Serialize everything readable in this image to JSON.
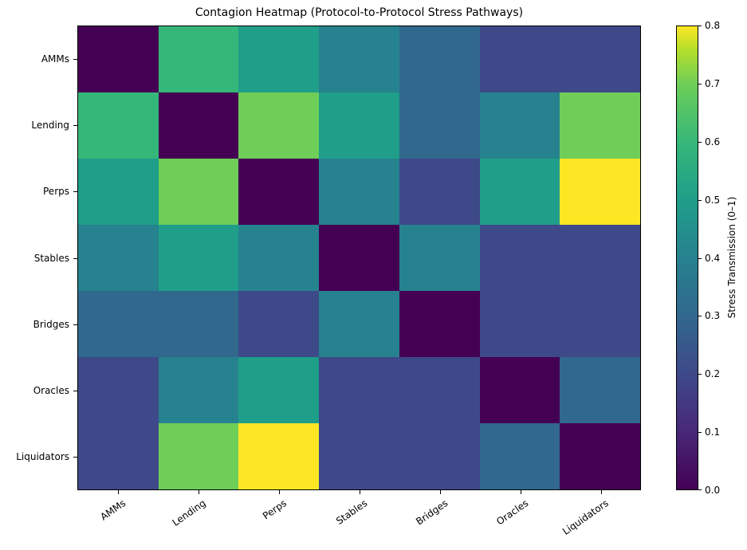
{
  "chart_data": {
    "type": "heatmap",
    "title": "Contagion Heatmap (Protocol-to-Protocol Stress Pathways)",
    "x_labels": [
      "AMMs",
      "Lending",
      "Perps",
      "Stables",
      "Bridges",
      "Oracles",
      "Liquidators"
    ],
    "y_labels": [
      "AMMs",
      "Lending",
      "Perps",
      "Stables",
      "Bridges",
      "Oracles",
      "Liquidators"
    ],
    "values": [
      [
        0.0,
        0.6,
        0.5,
        0.4,
        0.3,
        0.2,
        0.2
      ],
      [
        0.6,
        0.0,
        0.7,
        0.5,
        0.3,
        0.4,
        0.7
      ],
      [
        0.5,
        0.7,
        0.0,
        0.4,
        0.2,
        0.5,
        0.8
      ],
      [
        0.4,
        0.5,
        0.4,
        0.0,
        0.4,
        0.2,
        0.2
      ],
      [
        0.3,
        0.3,
        0.2,
        0.4,
        0.0,
        0.2,
        0.2
      ],
      [
        0.2,
        0.4,
        0.5,
        0.2,
        0.2,
        0.0,
        0.3
      ],
      [
        0.2,
        0.7,
        0.8,
        0.2,
        0.2,
        0.3,
        0.0
      ]
    ],
    "colormap": "viridis",
    "vmin": 0.0,
    "vmax": 0.8,
    "colorbar": {
      "label": "Stress Transmission (0–1)",
      "ticks": [
        "0.0",
        "0.1",
        "0.2",
        "0.3",
        "0.4",
        "0.5",
        "0.6",
        "0.7",
        "0.8"
      ]
    },
    "xlabel": "",
    "ylabel": "",
    "grid": false
  }
}
